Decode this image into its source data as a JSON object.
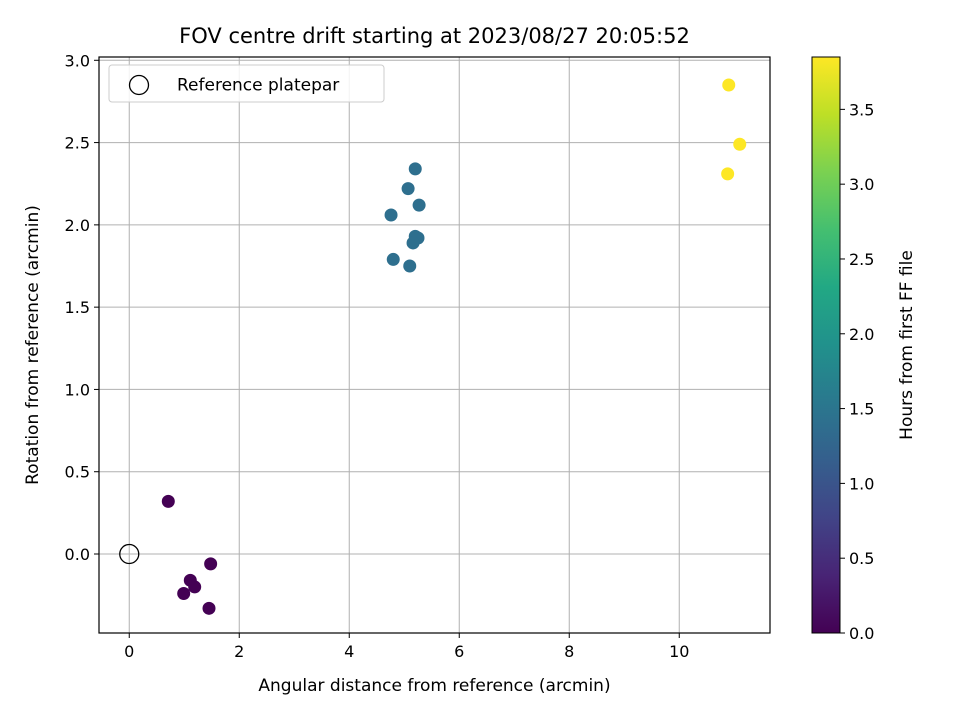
{
  "chart_data": {
    "type": "scatter",
    "title": "FOV centre drift starting at 2023/08/27 20:05:52",
    "xlabel": "Angular distance from reference (arcmin)",
    "ylabel": "Rotation from reference (arcmin)",
    "xlim": [
      -0.55,
      11.65
    ],
    "ylim": [
      -0.48,
      3.02
    ],
    "xticks": [
      0,
      2,
      4,
      6,
      8,
      10
    ],
    "yticks": [
      0.0,
      0.5,
      1.0,
      1.5,
      2.0,
      2.5,
      3.0
    ],
    "grid": true,
    "legend": {
      "placement": "top-left",
      "entries": [
        {
          "label": "Reference platepar",
          "marker": "open-circle"
        }
      ]
    },
    "reference_point": {
      "x": 0.0,
      "y": 0.0
    },
    "colorbar": {
      "label": "Hours from first FF file",
      "colormap": "viridis",
      "range": [
        0.0,
        3.85
      ],
      "ticks": [
        0.0,
        0.5,
        1.0,
        1.5,
        2.0,
        2.5,
        3.0,
        3.5
      ]
    },
    "points": [
      {
        "x": 0.71,
        "y": 0.32,
        "hours": 0.0
      },
      {
        "x": 1.48,
        "y": -0.06,
        "hours": 0.0
      },
      {
        "x": 1.11,
        "y": -0.16,
        "hours": 0.0
      },
      {
        "x": 1.19,
        "y": -0.2,
        "hours": 0.0
      },
      {
        "x": 0.99,
        "y": -0.24,
        "hours": 0.0
      },
      {
        "x": 1.45,
        "y": -0.33,
        "hours": 0.0
      },
      {
        "x": 5.2,
        "y": 2.34,
        "hours": 1.4
      },
      {
        "x": 5.07,
        "y": 2.22,
        "hours": 1.4
      },
      {
        "x": 5.27,
        "y": 2.12,
        "hours": 1.4
      },
      {
        "x": 4.76,
        "y": 2.06,
        "hours": 1.4
      },
      {
        "x": 5.2,
        "y": 1.93,
        "hours": 1.4
      },
      {
        "x": 5.25,
        "y": 1.92,
        "hours": 1.4
      },
      {
        "x": 5.16,
        "y": 1.89,
        "hours": 1.4
      },
      {
        "x": 4.8,
        "y": 1.79,
        "hours": 1.4
      },
      {
        "x": 5.1,
        "y": 1.75,
        "hours": 1.4
      },
      {
        "x": 10.9,
        "y": 2.85,
        "hours": 3.85
      },
      {
        "x": 11.1,
        "y": 2.49,
        "hours": 3.85
      },
      {
        "x": 10.88,
        "y": 2.31,
        "hours": 3.85
      }
    ]
  }
}
